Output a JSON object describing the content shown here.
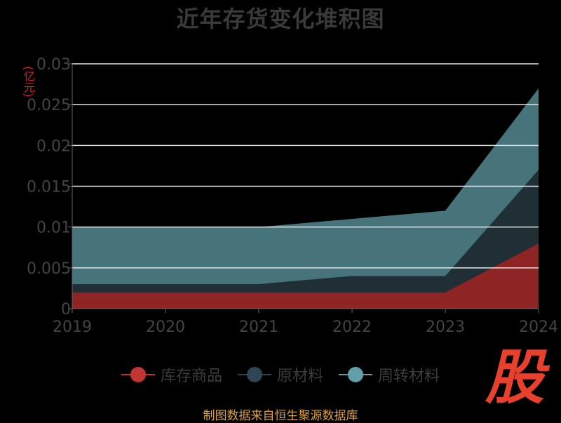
{
  "title": "近年存货变化堆积图",
  "y_unit": "(亿元)",
  "source_note": "制图数据来自恒生聚源数据库",
  "watermark": "股",
  "chart_data": {
    "type": "area",
    "stacked": true,
    "title": "近年存货变化堆积图",
    "ylabel": "(亿元)",
    "categories": [
      "2019",
      "2020",
      "2021",
      "2022",
      "2023",
      "2024"
    ],
    "ylim": [
      0,
      0.03
    ],
    "yticks": [
      0,
      0.005,
      0.01,
      0.015,
      0.02,
      0.025,
      0.03
    ],
    "ytick_labels": [
      "0",
      "0.005",
      "0.01",
      "0.015",
      "0.02",
      "0.025",
      "0.03"
    ],
    "grid": true,
    "legend_position": "bottom",
    "series": [
      {
        "name": "库存商品",
        "values": [
          0.002,
          0.002,
          0.002,
          0.002,
          0.002,
          0.008
        ],
        "color": "#8f2424",
        "legend_color": "#c23531"
      },
      {
        "name": "原材料",
        "values": [
          0.001,
          0.001,
          0.001,
          0.002,
          0.002,
          0.009
        ],
        "color": "#202e36",
        "legend_color": "#2f4554"
      },
      {
        "name": "周转材料",
        "values": [
          0.007,
          0.007,
          0.007,
          0.007,
          0.008,
          0.01
        ],
        "color": "#47747a",
        "legend_color": "#61a0a8"
      }
    ]
  }
}
